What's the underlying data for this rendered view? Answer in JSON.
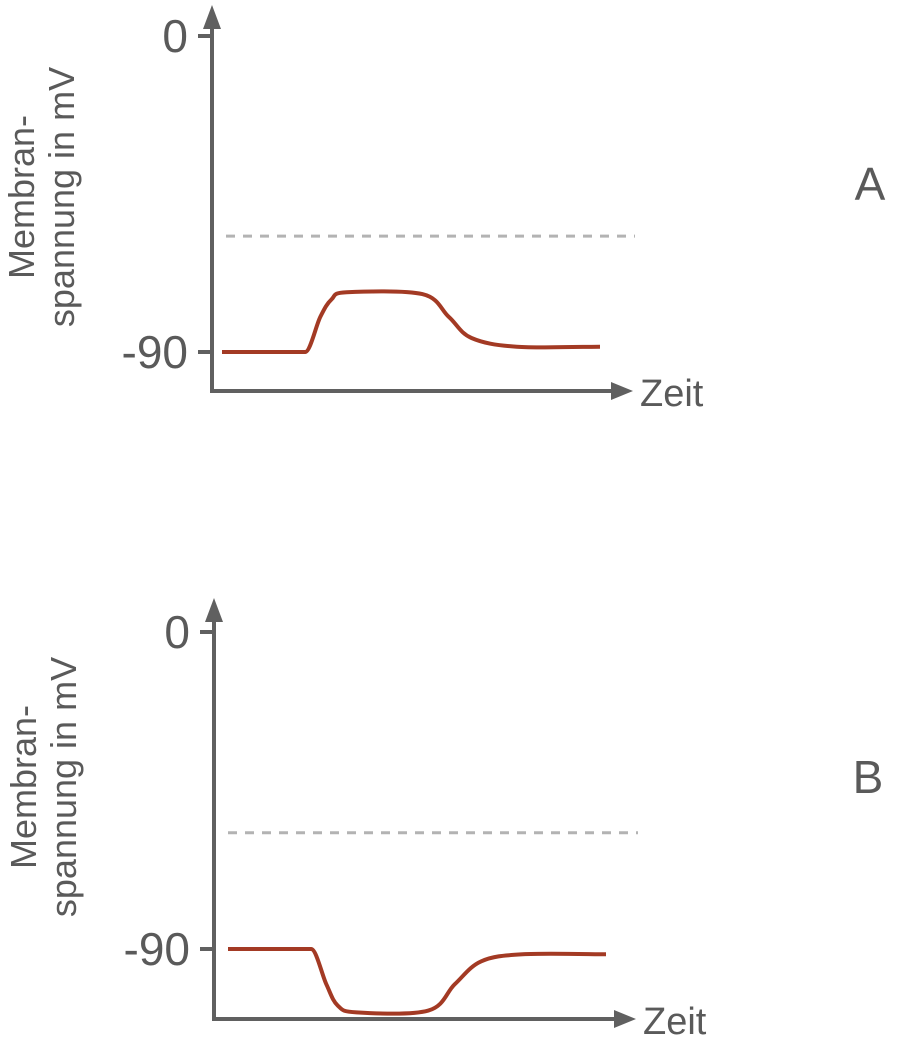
{
  "chart_data": [
    {
      "type": "line",
      "panel_label": "A",
      "ylabel_lines": [
        "Membran-",
        "spannung in mV"
      ],
      "xlabel": "Zeit",
      "yticks": [
        {
          "value": 0,
          "label": "0"
        },
        {
          "value": -90,
          "label": "-90"
        }
      ],
      "ylim": [
        -90,
        0
      ],
      "threshold_value": -57,
      "grid": false,
      "series": [
        {
          "color": "#a33a24",
          "points": [
            {
              "t": 0.0,
              "v": -90
            },
            {
              "t": 0.22,
              "v": -90
            },
            {
              "t": 0.26,
              "v": -80
            },
            {
              "t": 0.29,
              "v": -75
            },
            {
              "t": 0.33,
              "v": -73
            },
            {
              "t": 0.53,
              "v": -73.5
            },
            {
              "t": 0.6,
              "v": -80
            },
            {
              "t": 0.66,
              "v": -86
            },
            {
              "t": 0.78,
              "v": -88.5
            },
            {
              "t": 1.0,
              "v": -88.5
            }
          ]
        }
      ]
    },
    {
      "type": "line",
      "panel_label": "B",
      "ylabel_lines": [
        "Membran-",
        "spannung in mV"
      ],
      "xlabel": "Zeit",
      "yticks": [
        {
          "value": 0,
          "label": "0"
        },
        {
          "value": -90,
          "label": "-90"
        }
      ],
      "ylim": [
        -90,
        0
      ],
      "threshold_value": -57,
      "grid": false,
      "series": [
        {
          "color": "#a33a24",
          "points": [
            {
              "t": 0.0,
              "v": -90
            },
            {
              "t": 0.22,
              "v": -90
            },
            {
              "t": 0.26,
              "v": -100
            },
            {
              "t": 0.29,
              "v": -106
            },
            {
              "t": 0.34,
              "v": -108
            },
            {
              "t": 0.53,
              "v": -107.5
            },
            {
              "t": 0.6,
              "v": -100
            },
            {
              "t": 0.67,
              "v": -93.5
            },
            {
              "t": 0.78,
              "v": -91.5
            },
            {
              "t": 1.0,
              "v": -91.5
            }
          ]
        }
      ]
    }
  ]
}
